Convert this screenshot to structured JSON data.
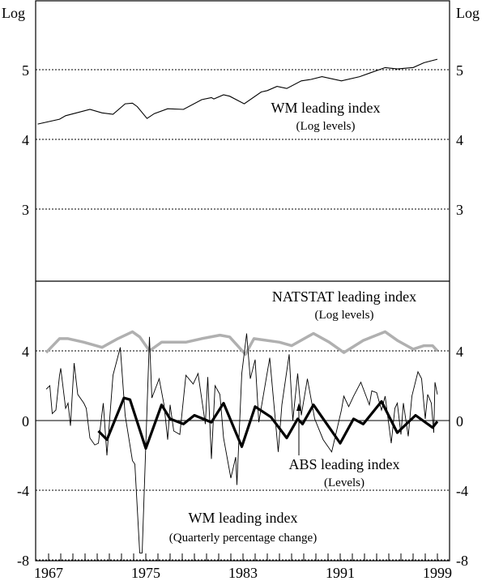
{
  "chart_data": [
    {
      "type": "line",
      "panel": "upper",
      "yunit_left": "Log",
      "yunit_right": "Log",
      "ylim": [
        2,
        6
      ],
      "yticks": [
        3,
        4,
        5
      ],
      "grid": "dotted horizontal",
      "series": [
        {
          "name": "WM leading index",
          "sub": "(Log levels)",
          "color": "#000000",
          "points": [
            [
              1966.1,
              4.22
            ],
            [
              1967.9,
              4.29
            ],
            [
              1968.4,
              4.34
            ],
            [
              1970.4,
              4.43
            ],
            [
              1971.4,
              4.38
            ],
            [
              1972.3,
              4.36
            ],
            [
              1973.3,
              4.51
            ],
            [
              1973.9,
              4.52
            ],
            [
              1974.3,
              4.47
            ],
            [
              1975.1,
              4.3
            ],
            [
              1975.7,
              4.37
            ],
            [
              1976.8,
              4.44
            ],
            [
              1978.1,
              4.43
            ],
            [
              1979.6,
              4.57
            ],
            [
              1980.4,
              4.6
            ],
            [
              1980.6,
              4.58
            ],
            [
              1981.4,
              4.64
            ],
            [
              1981.9,
              4.62
            ],
            [
              1983.1,
              4.51
            ],
            [
              1984.5,
              4.68
            ],
            [
              1985.0,
              4.7
            ],
            [
              1985.8,
              4.76
            ],
            [
              1986.6,
              4.73
            ],
            [
              1987.8,
              4.84
            ],
            [
              1988.6,
              4.86
            ],
            [
              1989.5,
              4.9
            ],
            [
              1991.1,
              4.84
            ],
            [
              1992.6,
              4.9
            ],
            [
              1993.4,
              4.95
            ],
            [
              1994.7,
              5.03
            ],
            [
              1995.7,
              5.01
            ],
            [
              1997.0,
              5.03
            ],
            [
              1997.9,
              5.1
            ],
            [
              1999.0,
              5.15
            ]
          ]
        }
      ]
    },
    {
      "type": "line",
      "panel": "lower",
      "ylim": [
        -8,
        8
      ],
      "yticks": [
        4,
        0,
        -4,
        -8
      ],
      "xlim": [
        1966,
        1999.9
      ],
      "xticks": [
        "1967",
        "1975",
        "1983",
        "1991",
        "1999"
      ],
      "grid": "dotted horizontal",
      "series": [
        {
          "name": "NATSTAT leading index",
          "sub": "(Log levels)",
          "color": "#b0b0b0",
          "points": [
            [
              1966.8,
              3.9
            ],
            [
              1967.9,
              4.7
            ],
            [
              1968.6,
              4.7
            ],
            [
              1969.9,
              4.5
            ],
            [
              1971.4,
              4.2
            ],
            [
              1972.7,
              4.7
            ],
            [
              1973.9,
              5.1
            ],
            [
              1974.5,
              4.8
            ],
            [
              1975.3,
              4.0
            ],
            [
              1976.3,
              4.5
            ],
            [
              1978.3,
              4.5
            ],
            [
              1979.6,
              4.7
            ],
            [
              1981.1,
              4.9
            ],
            [
              1981.9,
              4.8
            ],
            [
              1983.2,
              3.8
            ],
            [
              1983.9,
              4.7
            ],
            [
              1986.0,
              4.5
            ],
            [
              1987.0,
              4.3
            ],
            [
              1988.8,
              5.0
            ],
            [
              1990.1,
              4.5
            ],
            [
              1991.3,
              3.9
            ],
            [
              1992.9,
              4.6
            ],
            [
              1994.7,
              5.1
            ],
            [
              1995.7,
              4.6
            ],
            [
              1997.0,
              4.1
            ],
            [
              1997.9,
              4.3
            ],
            [
              1998.6,
              4.3
            ],
            [
              1999.0,
              4.0
            ]
          ]
        },
        {
          "name": "ABS leading index",
          "sub": "(Levels)",
          "color": "#000000",
          "points": [
            [
              1971.1,
              -0.6
            ],
            [
              1971.8,
              -1.1
            ],
            [
              1972.5,
              0.1
            ],
            [
              1973.2,
              1.3
            ],
            [
              1973.7,
              1.2
            ],
            [
              1975.0,
              -1.6
            ],
            [
              1976.3,
              0.9
            ],
            [
              1977.0,
              0.1
            ],
            [
              1978.1,
              -0.2
            ],
            [
              1979.0,
              0.3
            ],
            [
              1980.4,
              -0.1
            ],
            [
              1981.4,
              1.0
            ],
            [
              1982.9,
              -1.5
            ],
            [
              1984.0,
              0.8
            ],
            [
              1985.3,
              0.2
            ],
            [
              1986.6,
              -1.0
            ],
            [
              1987.5,
              0.1
            ],
            [
              1987.9,
              -0.2
            ],
            [
              1988.8,
              0.9
            ],
            [
              1990.1,
              -0.4
            ],
            [
              1991.0,
              -1.3
            ],
            [
              1992.1,
              0.1
            ],
            [
              1992.9,
              -0.2
            ],
            [
              1994.4,
              1.1
            ],
            [
              1995.7,
              -0.7
            ],
            [
              1997.2,
              0.3
            ],
            [
              1998.6,
              -0.4
            ],
            [
              1999.0,
              -0.05
            ]
          ]
        },
        {
          "name": "WM leading index",
          "sub": "(Quarterly percentage change)",
          "color": "#000000",
          "points": [
            [
              1966.8,
              1.8
            ],
            [
              1967.1,
              2.0
            ],
            [
              1967.3,
              0.4
            ],
            [
              1967.6,
              0.6
            ],
            [
              1967.9,
              2.6
            ],
            [
              1968.0,
              3.0
            ],
            [
              1968.4,
              0.7
            ],
            [
              1968.6,
              1.0
            ],
            [
              1968.8,
              -0.3
            ],
            [
              1969.1,
              3.3
            ],
            [
              1969.4,
              1.5
            ],
            [
              1969.9,
              1.0
            ],
            [
              1970.1,
              0.7
            ],
            [
              1970.4,
              -1.0
            ],
            [
              1970.8,
              -1.4
            ],
            [
              1971.1,
              -1.3
            ],
            [
              1971.5,
              1.0
            ],
            [
              1971.8,
              -2.0
            ],
            [
              1972.3,
              2.6
            ],
            [
              1972.9,
              4.2
            ],
            [
              1973.3,
              0.3
            ],
            [
              1973.9,
              -2.3
            ],
            [
              1974.1,
              -2.5
            ],
            [
              1974.5,
              -7.6
            ],
            [
              1974.7,
              -7.6
            ],
            [
              1975.3,
              4.8
            ],
            [
              1975.5,
              1.3
            ],
            [
              1976.1,
              2.4
            ],
            [
              1976.5,
              0.9
            ],
            [
              1976.8,
              -1.1
            ],
            [
              1977.0,
              0.9
            ],
            [
              1977.3,
              -0.6
            ],
            [
              1977.8,
              -0.8
            ],
            [
              1978.3,
              2.6
            ],
            [
              1978.9,
              2.1
            ],
            [
              1979.3,
              2.7
            ],
            [
              1979.9,
              -0.2
            ],
            [
              1980.1,
              2.5
            ],
            [
              1980.4,
              -2.2
            ],
            [
              1980.7,
              2.0
            ],
            [
              1981.1,
              1.5
            ],
            [
              1981.4,
              -1.0
            ],
            [
              1982.0,
              -3.3
            ],
            [
              1982.4,
              -2.1
            ],
            [
              1982.5,
              -3.7
            ],
            [
              1982.9,
              2.7
            ],
            [
              1983.3,
              5.0
            ],
            [
              1983.6,
              2.4
            ],
            [
              1984.0,
              3.5
            ],
            [
              1984.3,
              -0.1
            ],
            [
              1985.2,
              3.6
            ],
            [
              1985.9,
              -1.8
            ],
            [
              1986.2,
              0.9
            ],
            [
              1986.8,
              3.8
            ],
            [
              1987.1,
              0.0
            ],
            [
              1987.5,
              2.7
            ],
            [
              1987.8,
              0.3
            ],
            [
              1988.3,
              2.4
            ],
            [
              1988.9,
              0.1
            ],
            [
              1989.6,
              -1.1
            ],
            [
              1990.3,
              -1.8
            ],
            [
              1991.1,
              0.6
            ],
            [
              1991.3,
              1.4
            ],
            [
              1991.7,
              0.8
            ],
            [
              1992.1,
              1.4
            ],
            [
              1992.7,
              2.2
            ],
            [
              1993.4,
              0.9
            ],
            [
              1993.6,
              1.7
            ],
            [
              1994.0,
              1.6
            ],
            [
              1994.4,
              0.6
            ],
            [
              1994.7,
              1.4
            ],
            [
              1995.2,
              -1.3
            ],
            [
              1995.5,
              0.7
            ],
            [
              1995.7,
              1.0
            ],
            [
              1996.0,
              -0.8
            ],
            [
              1996.2,
              1.0
            ],
            [
              1996.6,
              -0.9
            ],
            [
              1996.9,
              1.4
            ],
            [
              1997.4,
              2.8
            ],
            [
              1997.7,
              2.4
            ],
            [
              1998.0,
              0.1
            ],
            [
              1998.2,
              1.5
            ],
            [
              1998.5,
              1.0
            ],
            [
              1998.7,
              -0.7
            ],
            [
              1998.8,
              2.2
            ],
            [
              1999.0,
              1.5
            ]
          ]
        }
      ]
    }
  ]
}
